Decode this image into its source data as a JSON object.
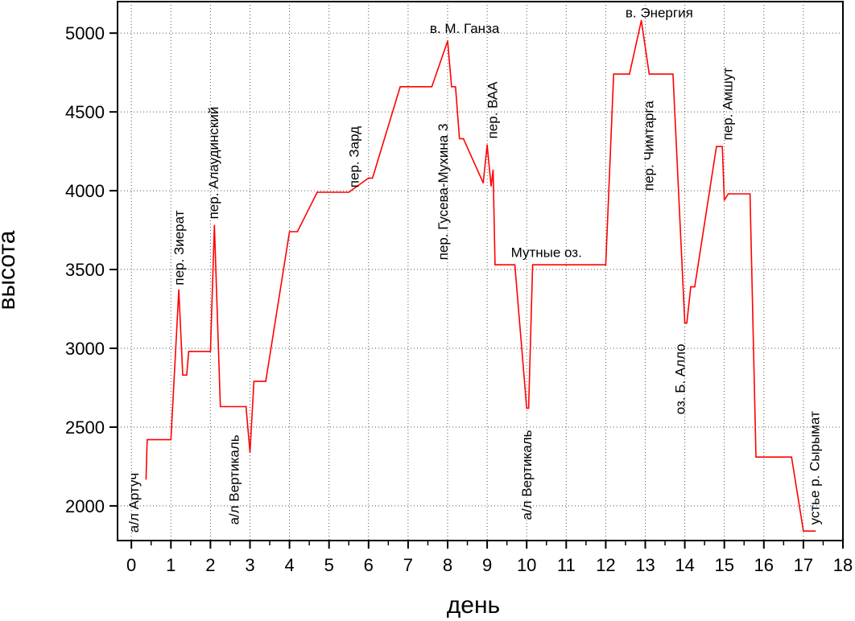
{
  "chart_data": {
    "type": "line",
    "xlabel": "день",
    "ylabel": "высота",
    "xlim": [
      -0.35,
      18
    ],
    "ylim": [
      1780,
      5200
    ],
    "xticks": [
      0,
      1,
      2,
      3,
      4,
      5,
      6,
      7,
      8,
      9,
      10,
      11,
      12,
      13,
      14,
      15,
      16,
      17,
      18
    ],
    "yticks": [
      2000,
      2500,
      3000,
      3500,
      4000,
      4500,
      5000
    ],
    "grid": true,
    "line_color": "#ff0000",
    "series": [
      {
        "x": [
          0.37,
          0.4,
          1.0,
          1.2,
          1.3,
          1.4,
          1.45,
          1.5,
          2.0,
          2.1,
          2.25,
          2.4,
          2.9,
          3.0,
          3.1,
          3.4,
          4.0,
          4.2,
          4.7,
          5.5,
          6.0,
          6.1,
          6.8,
          7.6,
          8.0,
          8.1,
          8.2,
          8.3,
          8.4,
          8.9,
          9.0,
          9.1,
          9.15,
          9.2,
          9.25,
          9.3,
          9.7,
          10.0,
          10.05,
          10.15,
          10.2,
          11.0,
          12.0,
          12.2,
          12.6,
          12.9,
          13.1,
          13.3,
          13.7,
          14.0,
          14.05,
          14.15,
          14.25,
          14.8,
          14.95,
          15.0,
          15.1,
          15.15,
          15.65,
          15.8,
          15.9,
          16.7,
          17.0,
          17.3
        ],
        "y": [
          2170,
          2420,
          2420,
          3370,
          2830,
          2830,
          2980,
          2980,
          2980,
          3780,
          2630,
          2630,
          2630,
          2340,
          2790,
          2790,
          3740,
          3740,
          3990,
          3990,
          4080,
          4080,
          4660,
          4660,
          4950,
          4660,
          4660,
          4330,
          4330,
          4050,
          4290,
          4030,
          4130,
          3530,
          3530,
          3530,
          3530,
          2620,
          2620,
          3530,
          3530,
          3530,
          3530,
          4740,
          4740,
          5080,
          4740,
          4740,
          4740,
          3160,
          3160,
          3390,
          3390,
          4280,
          4280,
          3940,
          3980,
          3980,
          3980,
          2310,
          2310,
          2310,
          1840,
          1840
        ]
      }
    ],
    "annotations": [
      {
        "text": "а/л Артуч",
        "x": 0.18,
        "y": 1830,
        "rotated": true
      },
      {
        "text": "пер. Зиерат",
        "x": 1.32,
        "y": 3400,
        "rotated": true
      },
      {
        "text": "пер. Алаудинский",
        "x": 2.2,
        "y": 3820,
        "rotated": true
      },
      {
        "text": "а/л Вертикаль",
        "x": 2.72,
        "y": 1880,
        "rotated": true
      },
      {
        "text": "пер. Зард",
        "x": 5.75,
        "y": 4020,
        "rotated": true
      },
      {
        "text": "в. М. Ганза",
        "x": 7.55,
        "y": 5000,
        "rotated": false
      },
      {
        "text": "пер. Гусева-Мухина 3",
        "x": 8.0,
        "y": 3560,
        "rotated": true
      },
      {
        "text": "пер. ВАА",
        "x": 9.25,
        "y": 4330,
        "rotated": true
      },
      {
        "text": "Мутные оз.",
        "x": 9.6,
        "y": 3580,
        "rotated": false
      },
      {
        "text": "а/л Вертикаль",
        "x": 10.12,
        "y": 1910,
        "rotated": true
      },
      {
        "text": "в. Энергия",
        "x": 12.5,
        "y": 5100,
        "rotated": false
      },
      {
        "text": "пер. Чимтарга",
        "x": 13.2,
        "y": 4000,
        "rotated": true
      },
      {
        "text": "оз. Б. Алло",
        "x": 14.0,
        "y": 2580,
        "rotated": true
      },
      {
        "text": "пер. Амшут",
        "x": 15.2,
        "y": 4320,
        "rotated": true
      },
      {
        "text": "устье р. Сырымат",
        "x": 17.4,
        "y": 1880,
        "rotated": true
      }
    ]
  }
}
